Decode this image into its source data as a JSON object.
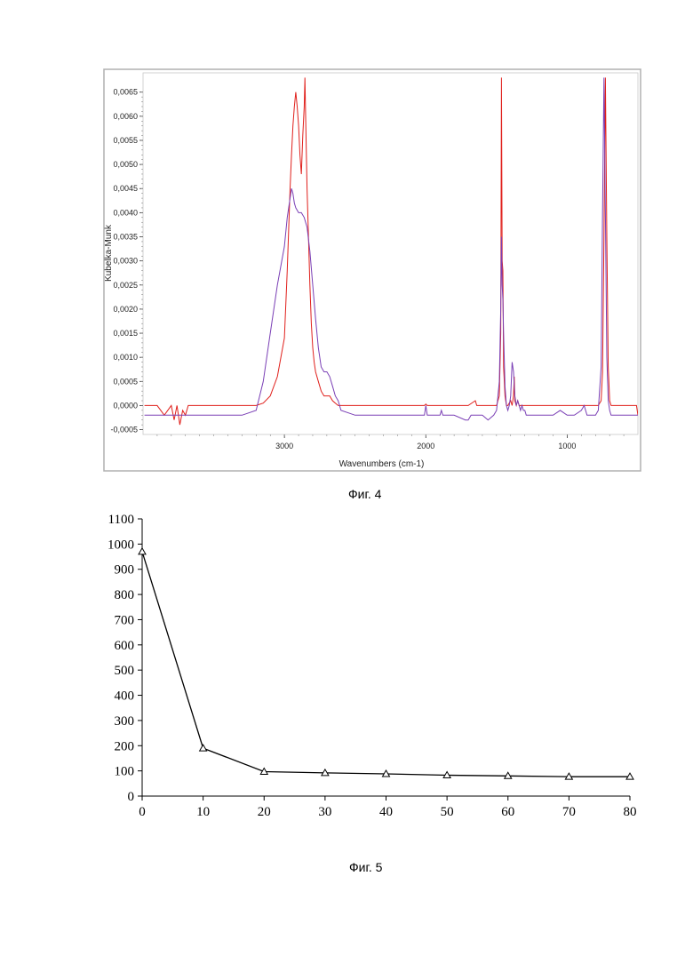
{
  "figures": [
    {
      "caption": "Фиг. 4",
      "chart_data": {
        "type": "line",
        "title": "",
        "xlabel": "Wavenumbers (cm-1)",
        "ylabel": "Kubelka-Munk",
        "xlim": [
          4000,
          500
        ],
        "ylim": [
          -0.0006,
          0.0069
        ],
        "x_ticks": [
          3000,
          2000,
          1000
        ],
        "x_tick_labels": [
          "3000",
          "2000",
          "1000"
        ],
        "y_ticks": [
          -0.0005,
          0,
          0.0005,
          0.001,
          0.0015,
          0.002,
          0.0025,
          0.003,
          0.0035,
          0.004,
          0.0045,
          0.005,
          0.0055,
          0.006,
          0.0065
        ],
        "y_tick_labels": [
          "-0,0005",
          "0,0000",
          "0,0005",
          "0,0010",
          "0,0015",
          "0,0020",
          "0,0025",
          "0,0030",
          "0,0035",
          "0,0040",
          "0,0045",
          "0,0050",
          "0,0055",
          "0,0060",
          "0,0065"
        ],
        "grid": false,
        "legend": "none",
        "series": [
          {
            "color": "#e0201c",
            "x": [
              3990,
              3900,
              3850,
              3800,
              3780,
              3760,
              3740,
              3720,
              3700,
              3680,
              3600,
              3400,
              3200,
              3150,
              3100,
              3050,
              3000,
              2980,
              2960,
              2950,
              2940,
              2930,
              2920,
              2910,
              2900,
              2890,
              2880,
              2870,
              2860,
              2855,
              2850,
              2840,
              2830,
              2820,
              2810,
              2800,
              2790,
              2780,
              2760,
              2740,
              2720,
              2700,
              2680,
              2660,
              2640,
              2620,
              2600,
              2500,
              2300,
              2100,
              2010,
              2000,
              1990,
              1900,
              1800,
              1700,
              1650,
              1640,
              1600,
              1550,
              1500,
              1480,
              1470,
              1465,
              1460,
              1455,
              1450,
              1440,
              1430,
              1420,
              1400,
              1390,
              1380,
              1375,
              1370,
              1360,
              1350,
              1340,
              1300,
              1200,
              1100,
              1000,
              900,
              850,
              800,
              780,
              760,
              750,
              740,
              730,
              720,
              710,
              700,
              690,
              680,
              600,
              550,
              510,
              500
            ],
            "y": [
              0.0,
              0.0,
              -0.0002,
              0.0,
              -0.0003,
              0.0,
              -0.0004,
              -0.0001,
              -0.0002,
              0.0,
              0.0,
              0.0,
              0.0,
              5e-05,
              0.0002,
              0.0006,
              0.0014,
              0.0028,
              0.0045,
              0.0052,
              0.0058,
              0.0062,
              0.0065,
              0.0062,
              0.0058,
              0.0052,
              0.0048,
              0.0056,
              0.0062,
              0.0068,
              0.006,
              0.0045,
              0.0035,
              0.0025,
              0.0017,
              0.0012,
              0.0009,
              0.0007,
              0.0005,
              0.0003,
              0.0002,
              0.0002,
              0.0002,
              0.0001,
              5e-05,
              0.0,
              0.0,
              0.0,
              0.0,
              0.0,
              0.0,
              3e-05,
              0.0,
              0.0,
              0.0,
              0.0,
              0.0001,
              0.0,
              0.0,
              0.0,
              0.0,
              0.0002,
              0.0015,
              0.0068,
              0.003,
              0.0028,
              0.0008,
              0.0002,
              0.0,
              0.0,
              0.0001,
              0.0,
              0.0002,
              0.0006,
              0.0001,
              0.0,
              0.0001,
              0.0,
              0.0,
              0.0,
              0.0,
              0.0,
              0.0,
              0.0,
              0.0,
              0.0,
              0.0001,
              0.0007,
              0.0035,
              0.0068,
              0.0035,
              0.0008,
              0.0001,
              0.0,
              0.0,
              0.0,
              0.0,
              0.0,
              -0.0002
            ]
          },
          {
            "color": "#7a3fb5",
            "x": [
              3990,
              3800,
              3600,
              3400,
              3300,
              3200,
              3150,
              3100,
              3050,
              3000,
              2980,
              2960,
              2950,
              2940,
              2930,
              2920,
              2900,
              2880,
              2860,
              2840,
              2820,
              2800,
              2780,
              2760,
              2740,
              2720,
              2700,
              2680,
              2660,
              2640,
              2620,
              2600,
              2500,
              2300,
              2100,
              2010,
              2000,
              1990,
              1900,
              1890,
              1880,
              1850,
              1800,
              1720,
              1700,
              1680,
              1600,
              1560,
              1520,
              1500,
              1480,
              1470,
              1465,
              1460,
              1455,
              1450,
              1440,
              1430,
              1420,
              1410,
              1400,
              1390,
              1380,
              1375,
              1370,
              1360,
              1350,
              1340,
              1330,
              1320,
              1310,
              1300,
              1290,
              1280,
              1200,
              1100,
              1050,
              1000,
              950,
              900,
              880,
              860,
              800,
              780,
              760,
              750,
              740,
              730,
              720,
              710,
              700,
              690,
              680,
              600,
              500
            ],
            "y": [
              -0.0002,
              -0.0002,
              -0.0002,
              -0.0002,
              -0.0002,
              -0.0001,
              0.0005,
              0.0015,
              0.0025,
              0.0033,
              0.0039,
              0.0043,
              0.0045,
              0.0044,
              0.0042,
              0.0041,
              0.004,
              0.004,
              0.0039,
              0.0037,
              0.0032,
              0.0025,
              0.0018,
              0.0012,
              0.0008,
              0.0007,
              0.0007,
              0.0006,
              0.0004,
              0.0002,
              0.0001,
              -0.0001,
              -0.0002,
              -0.0002,
              -0.0002,
              -0.0002,
              0.0,
              -0.0002,
              -0.0002,
              -0.0001,
              -0.0002,
              -0.0002,
              -0.0002,
              -0.0003,
              -0.0003,
              -0.0002,
              -0.0002,
              -0.0003,
              -0.0002,
              -0.0001,
              0.0005,
              0.002,
              0.0035,
              0.0025,
              0.0022,
              0.0015,
              0.0004,
              0.0,
              -0.0001,
              0.0,
              0.0002,
              0.0009,
              0.0007,
              0.0004,
              0.0002,
              0.0,
              0.0001,
              0.0,
              -0.0001,
              0.0,
              -0.0001,
              -0.0001,
              -0.0002,
              -0.0002,
              -0.0002,
              -0.0002,
              -0.0001,
              -0.0002,
              -0.0002,
              -0.0001,
              0.0,
              -0.0002,
              -0.0002,
              -0.0001,
              0.0008,
              0.004,
              0.0068,
              0.004,
              0.001,
              0.0001,
              -0.0001,
              -0.0002,
              -0.0002,
              -0.0002,
              -0.0002
            ]
          }
        ]
      }
    },
    {
      "caption": "Фиг. 5",
      "chart_data": {
        "type": "line",
        "title": "",
        "xlabel": "",
        "ylabel": "",
        "xlim": [
          0,
          80
        ],
        "ylim": [
          0,
          1100
        ],
        "x_ticks": [
          0,
          10,
          20,
          30,
          40,
          50,
          60,
          70,
          80
        ],
        "y_ticks": [
          0,
          100,
          200,
          300,
          400,
          500,
          600,
          700,
          800,
          900,
          1000,
          1100
        ],
        "grid": false,
        "legend": "none",
        "marker": "triangle",
        "series": [
          {
            "color": "#000000",
            "x": [
              0,
              10,
              20,
              30,
              40,
              50,
              60,
              70,
              80
            ],
            "y": [
              970,
              190,
              97,
              92,
              88,
              83,
              80,
              77,
              77
            ]
          }
        ]
      }
    }
  ]
}
